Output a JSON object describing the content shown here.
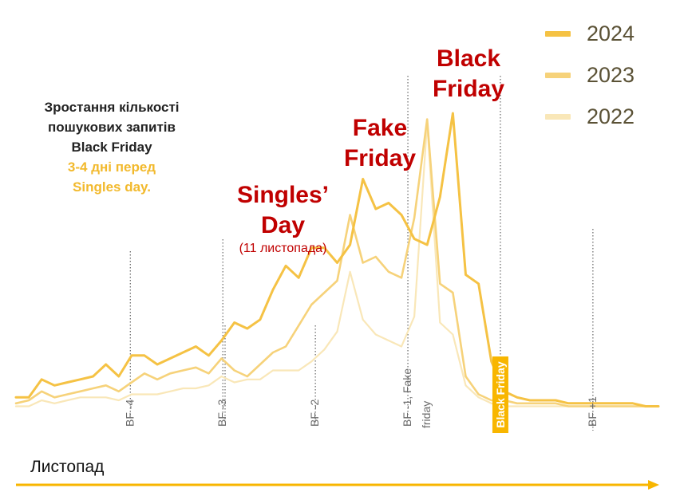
{
  "description": {
    "line1": "Зростання кількості",
    "line2": "пошукових запитів",
    "line3": "Black Friday",
    "line4": "3-4 дні перед",
    "line5": "Singles day."
  },
  "annotations": {
    "singles_day_1": "Singles’",
    "singles_day_2": "Day",
    "singles_day_sub": "(11 листопада)",
    "fake_friday_1": "Fake",
    "fake_friday_2": "Friday",
    "black_friday_1": "Black",
    "black_friday_2": "Friday"
  },
  "month_label": "Листопад",
  "colors": {
    "s2024": "#f5c244",
    "s2023": "#f6d27a",
    "s2022": "#f9e7b8",
    "annotation": "#c00000",
    "arrow": "#f8b600",
    "black_friday_box": "#f8b600"
  },
  "chart_data": {
    "type": "line",
    "x": [
      1,
      2,
      3,
      4,
      5,
      6,
      7,
      8,
      9,
      10,
      11,
      12,
      13,
      14,
      15,
      16,
      17,
      18,
      19,
      20,
      21,
      22,
      23,
      24,
      25,
      26,
      27,
      28,
      29,
      30,
      31,
      32,
      33,
      34,
      35,
      36,
      37,
      38,
      39,
      40,
      41,
      42,
      43,
      44,
      45,
      46,
      47,
      48,
      49,
      50,
      51
    ],
    "ylim": [
      0,
      100
    ],
    "grid": false,
    "legend_position": "top-right",
    "series": [
      {
        "name": "2024",
        "values": [
          5,
          5,
          11,
          9,
          10,
          11,
          12,
          16,
          12,
          19,
          19,
          16,
          18,
          20,
          22,
          19,
          24,
          30,
          28,
          31,
          41,
          49,
          45,
          55,
          55,
          50,
          56,
          78,
          68,
          70,
          66,
          58,
          56,
          72,
          100,
          46,
          43,
          17,
          7,
          5,
          4,
          4,
          4,
          3,
          3,
          3,
          3,
          3,
          3,
          2,
          2
        ]
      },
      {
        "name": "2023",
        "values": [
          3,
          4,
          7,
          5,
          6,
          7,
          8,
          9,
          7,
          10,
          13,
          11,
          13,
          14,
          15,
          13,
          18,
          14,
          12,
          16,
          20,
          22,
          29,
          36,
          40,
          44,
          66,
          50,
          52,
          47,
          45,
          65,
          98,
          43,
          40,
          12,
          6,
          4,
          4,
          3,
          3,
          3,
          3,
          2,
          2,
          2,
          2,
          2,
          2,
          2,
          2
        ]
      },
      {
        "name": "2022",
        "values": [
          2,
          2,
          4,
          3,
          4,
          5,
          5,
          5,
          4,
          6,
          6,
          6,
          7,
          8,
          8,
          9,
          12,
          10,
          11,
          11,
          14,
          14,
          14,
          17,
          21,
          27,
          47,
          31,
          26,
          24,
          22,
          32,
          97,
          30,
          26,
          9,
          5,
          3,
          2,
          2,
          2,
          2,
          2,
          2,
          2,
          2,
          2,
          2,
          2,
          2,
          2
        ]
      }
    ],
    "markers": [
      {
        "label": "BF -4",
        "x": 9.9
      },
      {
        "label": "BF -3",
        "x": 17.1
      },
      {
        "label": "BF -2",
        "x": 24.3
      },
      {
        "label": "BF -1, Fake friday",
        "x": 31.5
      },
      {
        "label": "Black Friday",
        "x": 38.7
      },
      {
        "label": "BF +1",
        "x": 45.9
      }
    ]
  }
}
